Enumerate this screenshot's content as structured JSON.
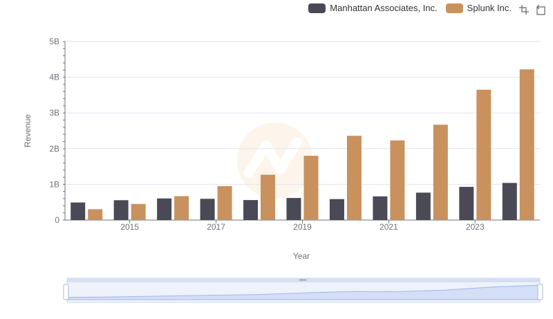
{
  "legend": {
    "items": [
      {
        "name": "Manhattan Associates, Inc.",
        "color": "#4a4a56"
      },
      {
        "name": "Splunk Inc.",
        "color": "#c8915e"
      }
    ]
  },
  "toolbar": {
    "zoom_icon": "zoom-icon",
    "restore_icon": "restore-icon"
  },
  "chart_data": {
    "type": "bar",
    "xlabel": "Year",
    "ylabel": "Revenue",
    "ylim": [
      0,
      5000000000
    ],
    "yticks": [
      {
        "value": 0,
        "label": "0"
      },
      {
        "value": 1000000000,
        "label": "1B"
      },
      {
        "value": 2000000000,
        "label": "2B"
      },
      {
        "value": 3000000000,
        "label": "3B"
      },
      {
        "value": 4000000000,
        "label": "4B"
      },
      {
        "value": 5000000000,
        "label": "5B"
      }
    ],
    "categories": [
      "2014",
      "2015",
      "2016",
      "2017",
      "2018",
      "2019",
      "2020",
      "2021",
      "2022",
      "2023",
      "2024"
    ],
    "xtick_labels": [
      "2015",
      "2017",
      "2019",
      "2021",
      "2023"
    ],
    "series": [
      {
        "name": "Manhattan Associates, Inc.",
        "color": "#4a4a56",
        "values": [
          492000000,
          556000000,
          605000000,
          595000000,
          560000000,
          618000000,
          587000000,
          663000000,
          768000000,
          929000000,
          1040000000
        ]
      },
      {
        "name": "Splunk Inc.",
        "color": "#c8915e",
        "values": [
          303000000,
          451000000,
          669000000,
          950000000,
          1270000000,
          1800000000,
          2360000000,
          2230000000,
          2670000000,
          3650000000,
          4220000000
        ]
      }
    ],
    "grid": true,
    "legend_position": "top-right",
    "datazoom": {
      "start": 0,
      "end": 100
    }
  }
}
